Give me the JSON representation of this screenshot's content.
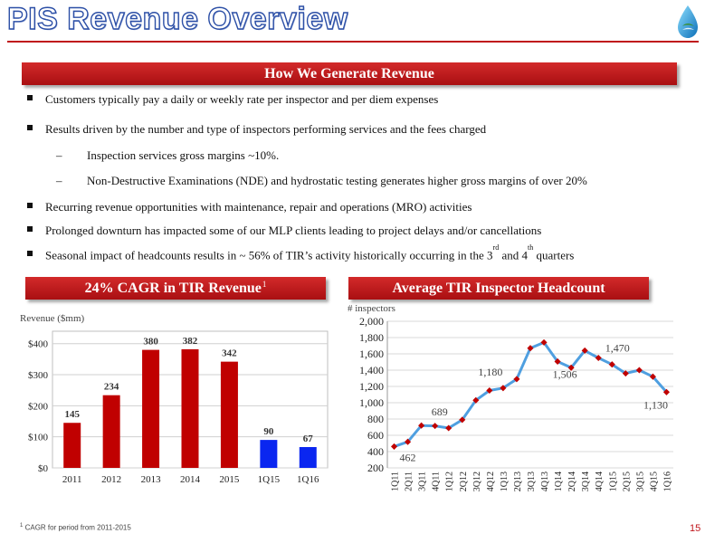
{
  "header": {
    "title": "PIS Revenue Overview",
    "title_color": "#2c4fa6",
    "rule_color": "#c0161c",
    "logo_icon": "water-drop-icon"
  },
  "section_banner": "How We Generate Revenue",
  "bullets": {
    "b1": "Customers typically pay a daily or weekly rate per inspector and per diem expenses",
    "b2": "Results driven by the number and type of inspectors performing services and the fees charged",
    "s1_dash": "–",
    "s1": "Inspection services gross margins ~10%.",
    "s2_dash": "–",
    "s2": "Non-Destructive Examinations (NDE) and hydrostatic testing generates higher gross margins of over 20%",
    "b3": "Recurring revenue opportunities with maintenance, repair and operations (MRO) activities",
    "b4": "Prolonged downturn has impacted some of our MLP clients leading to project delays and/or cancellations",
    "b5_pre": "Seasonal impact of headcounts results in ~ 56% of TIR’s activity historically occurring in the 3",
    "b5_sup1": "rd",
    "b5_mid": " and 4",
    "b5_sup2": "th",
    "b5_post": " quarters"
  },
  "left_banner": {
    "text": "24% CAGR in TIR Revenue",
    "sup": "1"
  },
  "right_banner": "Average TIR Inspector Headcount",
  "chart_data": [
    {
      "type": "bar",
      "ylabel": "Revenue ($mm)",
      "categories": [
        "2011",
        "2012",
        "2013",
        "2014",
        "2015",
        "1Q15",
        "1Q16"
      ],
      "values": [
        145,
        234,
        380,
        382,
        342,
        90,
        67
      ],
      "value_labels": [
        "145",
        "234",
        "380",
        "382",
        "342",
        "90",
        "67"
      ],
      "bar_colors": [
        "#c00000",
        "#c00000",
        "#c00000",
        "#c00000",
        "#c00000",
        "#0a26f0",
        "#0a26f0"
      ],
      "ylim": [
        0,
        440
      ],
      "yticks": [
        0,
        100,
        200,
        300,
        400
      ],
      "ytick_labels": [
        "$0",
        "$100",
        "$200",
        "$300",
        "$400"
      ],
      "grid": true
    },
    {
      "type": "line",
      "ylabel": "# inspectors",
      "categories": [
        "1Q11",
        "2Q11",
        "3Q11",
        "4Q11",
        "1Q12",
        "2Q12",
        "3Q12",
        "4Q12",
        "1Q13",
        "2Q13",
        "3Q13",
        "4Q13",
        "1Q14",
        "2Q14",
        "3Q14",
        "4Q14",
        "1Q15",
        "2Q15",
        "3Q15",
        "4Q15",
        "1Q16"
      ],
      "values": [
        462,
        520,
        720,
        715,
        689,
        790,
        1030,
        1150,
        1180,
        1290,
        1670,
        1740,
        1506,
        1430,
        1640,
        1550,
        1470,
        1360,
        1400,
        1320,
        1130
      ],
      "annotations": [
        {
          "index": 0,
          "text": "462"
        },
        {
          "index": 4,
          "text": "689"
        },
        {
          "index": 8,
          "text": "1,180"
        },
        {
          "index": 12,
          "text": "1,506"
        },
        {
          "index": 16,
          "text": "1,470"
        },
        {
          "index": 20,
          "text": "1,130"
        }
      ],
      "ylim": [
        200,
        2000
      ],
      "yticks": [
        200,
        400,
        600,
        800,
        1000,
        1200,
        1400,
        1600,
        1800,
        2000
      ],
      "ytick_labels": [
        "200",
        "400",
        "600",
        "800",
        "1,000",
        "1,200",
        "1,400",
        "1,600",
        "1,800",
        "2,000"
      ],
      "line_color": "#4f9fe0",
      "marker_color": "#c00000",
      "grid": true
    }
  ],
  "footnote": {
    "sup": "1",
    "text": "CAGR for period from 2011-2015"
  },
  "page_number": "15"
}
